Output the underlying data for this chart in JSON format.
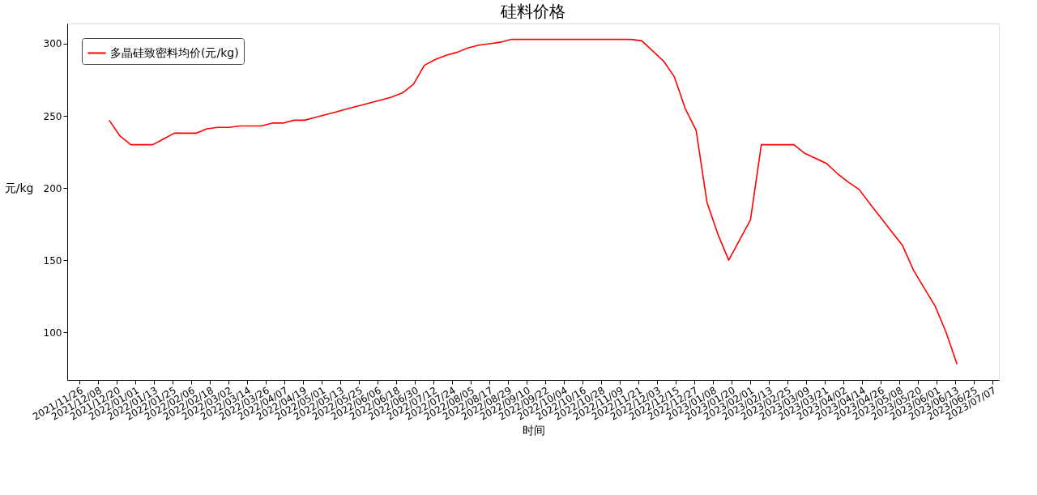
{
  "chart_data": {
    "type": "line",
    "title": "硅料价格",
    "xlabel": "时间",
    "ylabel": "元/kg",
    "x": [
      "2021-12-15",
      "2021-12-22",
      "2021-12-29",
      "2022-01-05",
      "2022-01-12",
      "2022-01-19",
      "2022-01-26",
      "2022-02-02",
      "2022-02-09",
      "2022-02-16",
      "2022-02-23",
      "2022-03-02",
      "2022-03-09",
      "2022-03-16",
      "2022-03-23",
      "2022-03-30",
      "2022-04-06",
      "2022-04-13",
      "2022-04-20",
      "2022-04-27",
      "2022-05-04",
      "2022-05-11",
      "2022-05-18",
      "2022-05-25",
      "2022-06-01",
      "2022-06-08",
      "2022-06-15",
      "2022-06-22",
      "2022-06-29",
      "2022-07-06",
      "2022-07-13",
      "2022-07-20",
      "2022-07-27",
      "2022-08-03",
      "2022-08-10",
      "2022-08-17",
      "2022-08-24",
      "2022-08-31",
      "2022-11-16",
      "2022-11-23",
      "2022-12-07",
      "2022-12-14",
      "2022-12-21",
      "2022-12-28",
      "2023-01-04",
      "2023-01-11",
      "2023-01-18",
      "2023-02-01",
      "2023-02-08",
      "2023-03-01",
      "2023-03-08",
      "2023-03-22",
      "2023-03-29",
      "2023-04-05",
      "2023-04-12",
      "2023-04-19",
      "2023-05-10",
      "2023-05-17",
      "2023-05-31",
      "2023-06-07",
      "2023-06-14"
    ],
    "series": [
      {
        "name": "多晶硅致密料均价(元/kg)",
        "color": "#ff0000",
        "values": [
          247,
          236,
          230,
          230,
          230,
          234,
          238,
          238,
          238,
          241,
          242,
          242,
          243,
          243,
          243,
          245,
          245,
          247,
          247,
          249,
          251,
          253,
          255,
          257,
          259,
          261,
          263,
          266,
          272,
          285,
          289,
          292,
          294,
          297,
          299,
          300,
          301,
          303,
          303,
          302,
          288,
          277,
          255,
          240,
          190,
          168,
          150,
          178,
          230,
          230,
          224,
          217,
          210,
          204,
          199,
          189,
          160,
          143,
          118,
          100,
          78
        ]
      }
    ],
    "xlim": [
      "2021-11-18",
      "2023-07-11"
    ],
    "xticks": [
      {
        "value": "2021-11-26",
        "label": "2021/11/26"
      },
      {
        "value": "2021-12-08",
        "label": "2021/12/08"
      },
      {
        "value": "2021-12-20",
        "label": "2021/12/20"
      },
      {
        "value": "2022-01-01",
        "label": "2022/01/01"
      },
      {
        "value": "2022-01-13",
        "label": "2022/01/13"
      },
      {
        "value": "2022-01-25",
        "label": "2022/01/25"
      },
      {
        "value": "2022-02-06",
        "label": "2022/02/06"
      },
      {
        "value": "2022-02-18",
        "label": "2022/02/18"
      },
      {
        "value": "2022-03-02",
        "label": "2022/03/02"
      },
      {
        "value": "2022-03-14",
        "label": "2022/03/14"
      },
      {
        "value": "2022-03-26",
        "label": "2022/03/26"
      },
      {
        "value": "2022-04-07",
        "label": "2022/04/07"
      },
      {
        "value": "2022-04-19",
        "label": "2022/04/19"
      },
      {
        "value": "2022-05-01",
        "label": "2022/05/01"
      },
      {
        "value": "2022-05-13",
        "label": "2022/05/13"
      },
      {
        "value": "2022-05-25",
        "label": "2022/05/25"
      },
      {
        "value": "2022-06-06",
        "label": "2022/06/06"
      },
      {
        "value": "2022-06-18",
        "label": "2022/06/18"
      },
      {
        "value": "2022-06-30",
        "label": "2022/06/30"
      },
      {
        "value": "2022-07-12",
        "label": "2022/07/12"
      },
      {
        "value": "2022-07-24",
        "label": "2022/07/24"
      },
      {
        "value": "2022-08-05",
        "label": "2022/08/05"
      },
      {
        "value": "2022-08-17",
        "label": "2022/08/17"
      },
      {
        "value": "2022-08-29",
        "label": "2022/08/29"
      },
      {
        "value": "2022-09-10",
        "label": "2022/09/10"
      },
      {
        "value": "2022-09-22",
        "label": "2022/09/22"
      },
      {
        "value": "2022-10-04",
        "label": "2022/10/04"
      },
      {
        "value": "2022-10-16",
        "label": "2022/10/16"
      },
      {
        "value": "2022-10-28",
        "label": "2022/10/28"
      },
      {
        "value": "2022-11-09",
        "label": "2022/11/09"
      },
      {
        "value": "2022-11-21",
        "label": "2022/11/21"
      },
      {
        "value": "2022-12-03",
        "label": "2022/12/03"
      },
      {
        "value": "2022-12-15",
        "label": "2022/12/15"
      },
      {
        "value": "2022-12-27",
        "label": "2022/12/27"
      },
      {
        "value": "2023-01-08",
        "label": "2023/01/08"
      },
      {
        "value": "2023-01-20",
        "label": "2023/01/20"
      },
      {
        "value": "2023-02-01",
        "label": "2023/02/01"
      },
      {
        "value": "2023-02-13",
        "label": "2023/02/13"
      },
      {
        "value": "2023-02-25",
        "label": "2023/02/25"
      },
      {
        "value": "2023-03-09",
        "label": "2023/03/09"
      },
      {
        "value": "2023-03-21",
        "label": "2023/03/21"
      },
      {
        "value": "2023-04-02",
        "label": "2023/04/02"
      },
      {
        "value": "2023-04-14",
        "label": "2023/04/14"
      },
      {
        "value": "2023-04-26",
        "label": "2023/04/26"
      },
      {
        "value": "2023-05-08",
        "label": "2023/05/08"
      },
      {
        "value": "2023-05-20",
        "label": "2023/05/20"
      },
      {
        "value": "2023-06-01",
        "label": "2023/06/01"
      },
      {
        "value": "2023-06-13",
        "label": "2023/06/13"
      },
      {
        "value": "2023-06-25",
        "label": "2023/06/25"
      },
      {
        "value": "2023-07-07",
        "label": "2023/07/07"
      }
    ],
    "ylim": [
      67,
      314
    ],
    "yticks": [
      100,
      150,
      200,
      250,
      300
    ],
    "legend": "top left",
    "grid": false,
    "line_style": "solid"
  }
}
